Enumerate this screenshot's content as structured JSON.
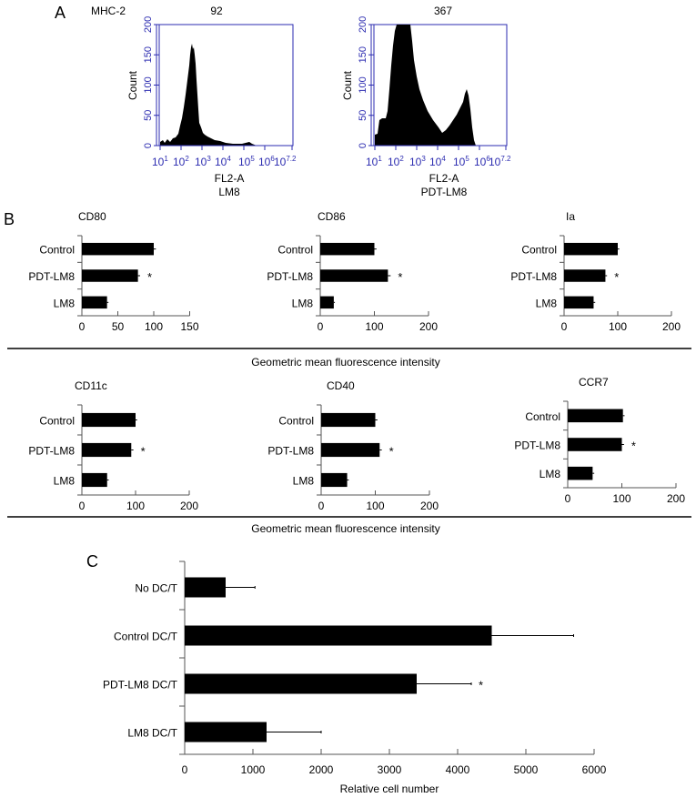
{
  "panels": {
    "A": {
      "label": "A",
      "marker": "MHC-2",
      "histograms": [
        {
          "title": "92",
          "xaxis": "FL2-A",
          "sample": "LM8",
          "ylabel": "Count",
          "yticks": [
            "0",
            "50",
            "100",
            "150",
            "200"
          ],
          "xticks": [
            "10",
            "10",
            "10",
            "10",
            "10",
            "10",
            "10"
          ],
          "xexp": [
            "1",
            "2",
            "3",
            "4",
            "5",
            "6",
            "7.2"
          ]
        },
        {
          "title": "367",
          "xaxis": "FL2-A",
          "sample": "PDT-LM8",
          "ylabel": "Count",
          "yticks": [
            "0",
            "50",
            "100",
            "150",
            "200"
          ],
          "xticks": [
            "10",
            "10",
            "10",
            "10",
            "10",
            "10",
            "10"
          ],
          "xexp": [
            "1",
            "2",
            "3",
            "4",
            "5",
            "6",
            "7.2"
          ]
        }
      ]
    },
    "B": {
      "label": "B",
      "caption_row1": "Geometric mean fluorescence intensity",
      "caption_row2": "Geometric mean fluorescence intensity",
      "categories": [
        "Control",
        "PDT-LM8",
        "LM8"
      ],
      "sig_marker": "*"
    },
    "C": {
      "label": "C",
      "xlabel": "Relative cell number",
      "categories": [
        "No DC/T",
        "Control DC/T",
        "PDT-LM8 DC/T",
        "LM8 DC/T"
      ],
      "xticks": [
        "0",
        "1000",
        "2000",
        "3000",
        "4000",
        "5000",
        "6000"
      ],
      "sig_marker": "*"
    }
  },
  "colors": {
    "bar": "#000000",
    "flow_axis": "#2b2bb0",
    "axis": "#555555"
  },
  "chart_data": [
    {
      "type": "area",
      "title": "92",
      "panel": "A",
      "marker": "MHC-2",
      "sample": "LM8",
      "xlabel": "FL2-A",
      "ylabel": "Count",
      "xscale": "log",
      "xlim": [
        10,
        15848931.9
      ],
      "ylim": [
        0,
        200
      ],
      "description": "single peak near 10^2.3, max ~150 counts",
      "x": [
        1,
        1.5,
        2,
        2.2,
        2.3,
        2.5,
        2.8,
        3,
        3.5,
        4,
        4.5,
        5,
        5.5,
        6,
        7.2
      ],
      "y": [
        5,
        10,
        60,
        120,
        150,
        110,
        30,
        15,
        8,
        5,
        3,
        5,
        0,
        0,
        0
      ]
    },
    {
      "type": "area",
      "title": "367",
      "panel": "A",
      "marker": "MHC-2",
      "sample": "PDT-LM8",
      "xlabel": "FL2-A",
      "ylabel": "Count",
      "xscale": "log",
      "xlim": [
        10,
        15848931.9
      ],
      "ylim": [
        0,
        200
      ],
      "description": "bimodal: large peak near 10^2.3 (>200, clipped) and second peak near 10^5.2 (~90)",
      "x": [
        1,
        1.3,
        1.5,
        1.8,
        2,
        2.3,
        2.6,
        3,
        3.5,
        4,
        4.3,
        4.6,
        5,
        5.2,
        5.4,
        5.6,
        6,
        7.2
      ],
      "y": [
        15,
        45,
        40,
        120,
        200,
        200,
        150,
        80,
        50,
        25,
        35,
        45,
        65,
        90,
        30,
        0,
        0,
        0
      ]
    },
    {
      "type": "bar",
      "orientation": "horizontal",
      "title": "CD80",
      "categories": [
        "Control",
        "PDT-LM8",
        "LM8"
      ],
      "values": [
        100,
        78,
        35
      ],
      "errors": [
        3,
        3,
        2
      ],
      "significant": [
        false,
        true,
        false
      ],
      "xlim": [
        0,
        150
      ],
      "xticks": [
        0,
        50,
        100,
        150
      ],
      "xlabel": "Geometric mean fluorescence intensity"
    },
    {
      "type": "bar",
      "orientation": "horizontal",
      "title": "CD86",
      "categories": [
        "Control",
        "PDT-LM8",
        "LM8"
      ],
      "values": [
        100,
        125,
        25
      ],
      "errors": [
        4,
        5,
        2
      ],
      "significant": [
        false,
        true,
        false
      ],
      "xlim": [
        0,
        200
      ],
      "xticks": [
        0,
        100,
        200
      ],
      "xlabel": "Geometric mean fluorescence intensity"
    },
    {
      "type": "bar",
      "orientation": "horizontal",
      "title": "Ia",
      "categories": [
        "Control",
        "PDT-LM8",
        "LM8"
      ],
      "values": [
        100,
        77,
        55
      ],
      "errors": [
        3,
        3,
        3
      ],
      "significant": [
        false,
        true,
        false
      ],
      "xlim": [
        0,
        200
      ],
      "xticks": [
        0,
        100,
        200
      ],
      "xlabel": "Geometric mean fluorescence intensity"
    },
    {
      "type": "bar",
      "orientation": "horizontal",
      "title": "CD11c",
      "categories": [
        "Control",
        "PDT-LM8",
        "LM8"
      ],
      "values": [
        100,
        92,
        47
      ],
      "errors": [
        3,
        4,
        3
      ],
      "significant": [
        false,
        true,
        false
      ],
      "xlim": [
        0,
        200
      ],
      "xticks": [
        0,
        100,
        200
      ],
      "xlabel": "Geometric mean fluorescence intensity"
    },
    {
      "type": "bar",
      "orientation": "horizontal",
      "title": "CD40",
      "categories": [
        "Control",
        "PDT-LM8",
        "LM8"
      ],
      "values": [
        100,
        108,
        48
      ],
      "errors": [
        4,
        4,
        3
      ],
      "significant": [
        false,
        true,
        false
      ],
      "xlim": [
        0,
        200
      ],
      "xticks": [
        0,
        100,
        200
      ],
      "xlabel": "Geometric mean fluorescence intensity"
    },
    {
      "type": "bar",
      "orientation": "horizontal",
      "title": "CCR7",
      "categories": [
        "Control",
        "PDT-LM8",
        "LM8"
      ],
      "values": [
        102,
        100,
        46
      ],
      "errors": [
        3,
        4,
        3
      ],
      "significant": [
        false,
        true,
        false
      ],
      "xlim": [
        0,
        200
      ],
      "xticks": [
        0,
        100,
        200
      ],
      "xlabel": "Geometric mean fluorescence intensity"
    },
    {
      "type": "bar",
      "orientation": "horizontal",
      "title": "",
      "panel": "C",
      "categories": [
        "No DC/T",
        "Control DC/T",
        "PDT-LM8 DC/T",
        "LM8 DC/T"
      ],
      "values": [
        600,
        4500,
        3400,
        1200
      ],
      "errors": [
        430,
        1200,
        800,
        800
      ],
      "significant": [
        false,
        false,
        true,
        false
      ],
      "xlim": [
        0,
        6000
      ],
      "xticks": [
        0,
        1000,
        2000,
        3000,
        4000,
        5000,
        6000
      ],
      "xlabel": "Relative cell number"
    }
  ]
}
